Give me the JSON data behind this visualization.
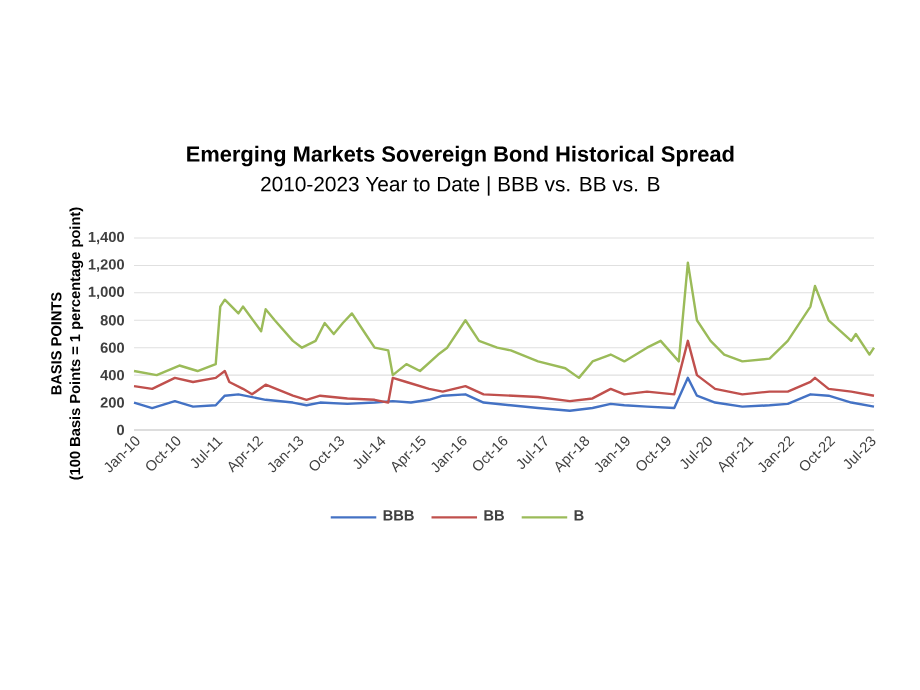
{
  "chart_data": {
    "type": "line",
    "title": "Emerging Markets Sovereign Bond Historical Spread",
    "subtitle": "2010-2023 Year to Date | BBB vs. BB vs. B",
    "ylabel": "BASIS POINTS",
    "annotations": [
      "(100 Basis Points = 1 percentage point)"
    ],
    "xlim": [
      "2010-01",
      "2023-08"
    ],
    "xticks": [
      {
        "value": "2010-01",
        "label": "Jan-10"
      },
      {
        "value": "2010-10",
        "label": "Oct-10"
      },
      {
        "value": "2011-07",
        "label": "Jul-11"
      },
      {
        "value": "2012-04",
        "label": "Apr-12"
      },
      {
        "value": "2013-01",
        "label": "Jan-13"
      },
      {
        "value": "2013-10",
        "label": "Oct-13"
      },
      {
        "value": "2014-07",
        "label": "Jul-14"
      },
      {
        "value": "2015-04",
        "label": "Apr-15"
      },
      {
        "value": "2016-01",
        "label": "Jan-16"
      },
      {
        "value": "2016-10",
        "label": "Oct-16"
      },
      {
        "value": "2017-07",
        "label": "Jul-17"
      },
      {
        "value": "2018-04",
        "label": "Apr-18"
      },
      {
        "value": "2019-01",
        "label": "Jan-19"
      },
      {
        "value": "2019-10",
        "label": "Oct-19"
      },
      {
        "value": "2020-07",
        "label": "Jul-20"
      },
      {
        "value": "2021-04",
        "label": "Apr-21"
      },
      {
        "value": "2022-01",
        "label": "Jan-22"
      },
      {
        "value": "2022-10",
        "label": "Oct-22"
      },
      {
        "value": "2023-07",
        "label": "Jul-23"
      }
    ],
    "ylim": [
      0,
      1400
    ],
    "yticks": [
      0,
      200,
      400,
      600,
      800,
      {
        "value": 1000,
        "label": "1,000"
      },
      {
        "value": 1200,
        "label": "1,200"
      },
      {
        "value": 1400,
        "label": "1,400"
      }
    ],
    "grid": "y",
    "legend": "bottom",
    "marker": "none",
    "line_style": "solid",
    "series": [
      {
        "name": "BBB",
        "color": "#4472c4",
        "x": [
          "2010-01",
          "2010-05",
          "2010-10",
          "2011-02",
          "2011-07",
          "2011-09",
          "2011-12",
          "2012-06",
          "2012-12",
          "2013-03",
          "2013-06",
          "2013-12",
          "2014-06",
          "2014-10",
          "2015-02",
          "2015-06",
          "2015-09",
          "2016-02",
          "2016-06",
          "2016-12",
          "2017-06",
          "2018-01",
          "2018-06",
          "2018-10",
          "2019-01",
          "2019-06",
          "2019-12",
          "2020-03",
          "2020-05",
          "2020-09",
          "2021-03",
          "2021-09",
          "2022-01",
          "2022-06",
          "2022-10",
          "2023-03",
          "2023-08"
        ],
        "values": [
          200,
          160,
          210,
          170,
          180,
          250,
          260,
          220,
          200,
          180,
          200,
          190,
          200,
          210,
          200,
          220,
          250,
          260,
          200,
          180,
          160,
          140,
          160,
          190,
          180,
          170,
          160,
          380,
          250,
          200,
          170,
          180,
          190,
          260,
          250,
          200,
          170
        ]
      },
      {
        "name": "BB",
        "color": "#c0504d",
        "x": [
          "2010-01",
          "2010-05",
          "2010-10",
          "2011-02",
          "2011-07",
          "2011-09",
          "2011-10",
          "2012-01",
          "2012-03",
          "2012-06",
          "2012-12",
          "2013-03",
          "2013-06",
          "2013-12",
          "2014-06",
          "2014-09",
          "2014-10",
          "2015-01",
          "2015-06",
          "2015-09",
          "2016-02",
          "2016-06",
          "2016-12",
          "2017-06",
          "2018-01",
          "2018-06",
          "2018-10",
          "2019-01",
          "2019-06",
          "2019-12",
          "2020-03",
          "2020-05",
          "2020-09",
          "2021-03",
          "2021-09",
          "2022-01",
          "2022-06",
          "2022-07",
          "2022-10",
          "2023-03",
          "2023-08"
        ],
        "values": [
          320,
          300,
          380,
          350,
          380,
          430,
          350,
          300,
          260,
          330,
          250,
          220,
          250,
          230,
          220,
          200,
          380,
          350,
          300,
          280,
          320,
          260,
          250,
          240,
          210,
          230,
          300,
          260,
          280,
          260,
          650,
          400,
          300,
          260,
          280,
          280,
          350,
          380,
          300,
          280,
          250
        ]
      },
      {
        "name": "B",
        "color": "#9bbb59",
        "x": [
          "2010-01",
          "2010-06",
          "2010-11",
          "2011-03",
          "2011-07",
          "2011-08",
          "2011-09",
          "2011-12",
          "2012-01",
          "2012-05",
          "2012-06",
          "2012-08",
          "2012-12",
          "2013-02",
          "2013-05",
          "2013-07",
          "2013-09",
          "2013-11",
          "2014-01",
          "2014-04",
          "2014-06",
          "2014-09",
          "2014-10",
          "2015-01",
          "2015-04",
          "2015-08",
          "2015-10",
          "2016-02",
          "2016-05",
          "2016-09",
          "2016-12",
          "2017-06",
          "2017-12",
          "2018-03",
          "2018-06",
          "2018-10",
          "2019-01",
          "2019-06",
          "2019-09",
          "2020-01",
          "2020-03",
          "2020-05",
          "2020-08",
          "2020-11",
          "2021-03",
          "2021-09",
          "2022-01",
          "2022-06",
          "2022-07",
          "2022-10",
          "2023-03",
          "2023-04",
          "2023-07",
          "2023-08"
        ],
        "values": [
          430,
          400,
          470,
          430,
          480,
          900,
          950,
          850,
          900,
          720,
          880,
          800,
          650,
          600,
          650,
          780,
          700,
          780,
          850,
          700,
          600,
          580,
          400,
          480,
          430,
          550,
          600,
          800,
          650,
          600,
          580,
          500,
          450,
          380,
          500,
          550,
          500,
          600,
          650,
          500,
          1220,
          800,
          650,
          550,
          500,
          520,
          650,
          900,
          1050,
          800,
          650,
          700,
          550,
          600
        ]
      }
    ]
  }
}
